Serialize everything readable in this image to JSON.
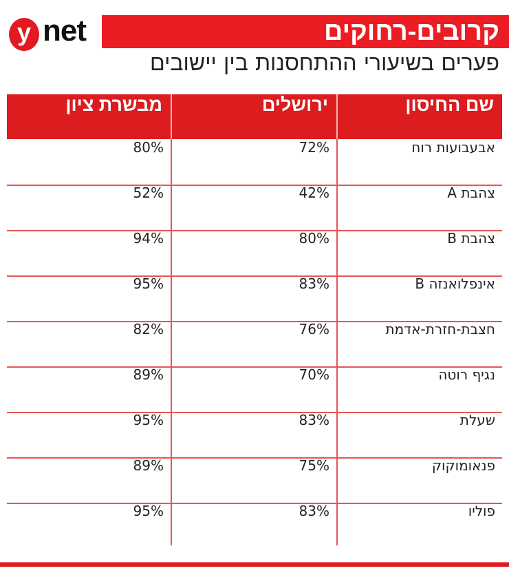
{
  "logo": {
    "mark": "y",
    "text": "net"
  },
  "title": "קרובים-רחוקים",
  "subtitle": "פערים בשיעורי ההתחסנות בין יישובים",
  "colors": {
    "accent": "#ec1c24",
    "header": "#dc1c1e",
    "grid": "#e85555"
  },
  "chart_data": {
    "type": "table",
    "title": "קרובים-רחוקים",
    "subtitle": "פערים בשיעורי ההתחסנות בין יישובים",
    "columns": [
      "שם החיסון",
      "ירושלים",
      "מבשרת ציון"
    ],
    "rows": [
      {
        "vaccine": "אבעבועות רוח",
        "jerusalem": "72%",
        "mevaseret": "80%"
      },
      {
        "vaccine": "צהבת A",
        "jerusalem": "42%",
        "mevaseret": "52%"
      },
      {
        "vaccine": "צהבת B",
        "jerusalem": "80%",
        "mevaseret": "94%"
      },
      {
        "vaccine": "אינפלואנזה  B",
        "jerusalem": "83%",
        "mevaseret": "95%"
      },
      {
        "vaccine": "חצבת-חזרת-אדמת",
        "jerusalem": "76%",
        "mevaseret": "82%"
      },
      {
        "vaccine": "נגיף רוטה",
        "jerusalem": "70%",
        "mevaseret": "89%"
      },
      {
        "vaccine": "שעלת",
        "jerusalem": "83%",
        "mevaseret": "95%"
      },
      {
        "vaccine": "פנאומוקוק",
        "jerusalem": "75%",
        "mevaseret": "89%"
      },
      {
        "vaccine": "פוליו",
        "jerusalem": "83%",
        "mevaseret": "95%"
      }
    ]
  }
}
